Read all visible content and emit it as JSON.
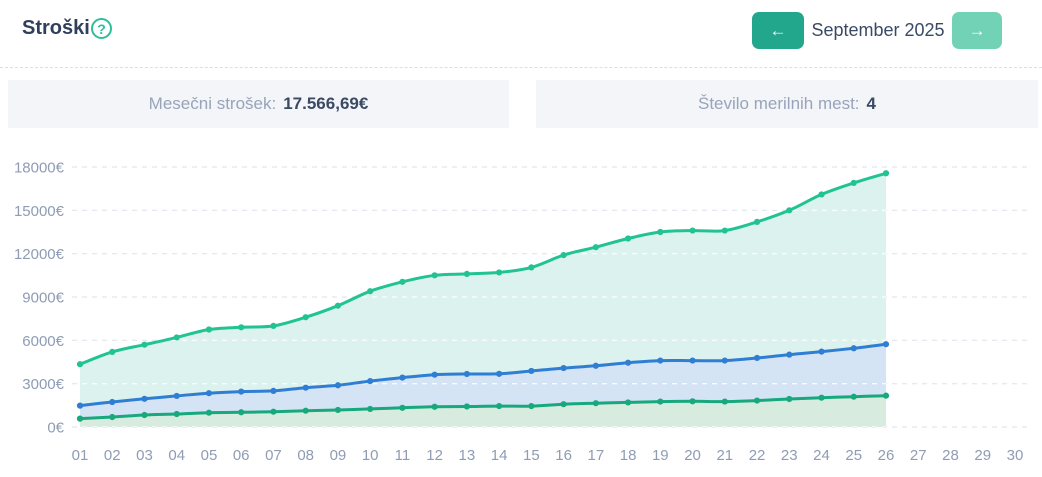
{
  "header": {
    "title": "Stroški",
    "help_icon": "?",
    "month_nav": {
      "prev_label": "←",
      "next_label": "→",
      "current_month": "September 2025"
    }
  },
  "stats": {
    "monthly_cost_label": "Mesečni strošek:",
    "monthly_cost_value": "17.566,69€",
    "meter_count_label": "Število merilnih mest:",
    "meter_count_value": "4"
  },
  "colors": {
    "accent": "#22a78c",
    "accent_light": "#72d2b5",
    "help_icon": "#2cc09a",
    "grid_line": "#e6eaf0",
    "axis_text": "#8e9cb4"
  },
  "chart_data": {
    "type": "area",
    "title": "",
    "xlabel": "",
    "ylabel": "",
    "y_unit": "€",
    "ylim": [
      0,
      18000
    ],
    "yticks": [
      0,
      3000,
      6000,
      9000,
      12000,
      15000,
      18000
    ],
    "grid": true,
    "legend": "none",
    "x_categories": [
      "01",
      "02",
      "03",
      "04",
      "05",
      "06",
      "07",
      "08",
      "09",
      "10",
      "11",
      "12",
      "13",
      "14",
      "15",
      "16",
      "17",
      "18",
      "19",
      "20",
      "21",
      "22",
      "23",
      "24",
      "25",
      "26",
      "27",
      "28",
      "29",
      "30"
    ],
    "data_end_day": 26,
    "series": [
      {
        "id": "total-cost",
        "color": "#21c392",
        "fill": "#dbf2ee",
        "values": [
          4350,
          5200,
          5700,
          6200,
          6750,
          6900,
          7000,
          7600,
          8400,
          9400,
          10050,
          10500,
          10600,
          10700,
          11050,
          11900,
          12450,
          13050,
          13500,
          13600,
          13600,
          14200,
          15000,
          16100,
          16900,
          17567
        ]
      },
      {
        "id": "series-2",
        "color": "#2f7ed3",
        "fill": "#d4e4f5",
        "values": [
          1480,
          1730,
          1950,
          2150,
          2340,
          2450,
          2500,
          2720,
          2890,
          3180,
          3420,
          3620,
          3670,
          3680,
          3880,
          4080,
          4240,
          4450,
          4600,
          4600,
          4600,
          4780,
          5010,
          5220,
          5450,
          5730
        ]
      },
      {
        "id": "series-3",
        "color": "#17a87d",
        "fill": "#d7ecdf",
        "values": [
          580,
          690,
          830,
          900,
          990,
          1020,
          1060,
          1130,
          1180,
          1250,
          1330,
          1400,
          1420,
          1450,
          1450,
          1580,
          1650,
          1700,
          1760,
          1780,
          1760,
          1830,
          1940,
          2030,
          2100,
          2170
        ]
      }
    ]
  }
}
